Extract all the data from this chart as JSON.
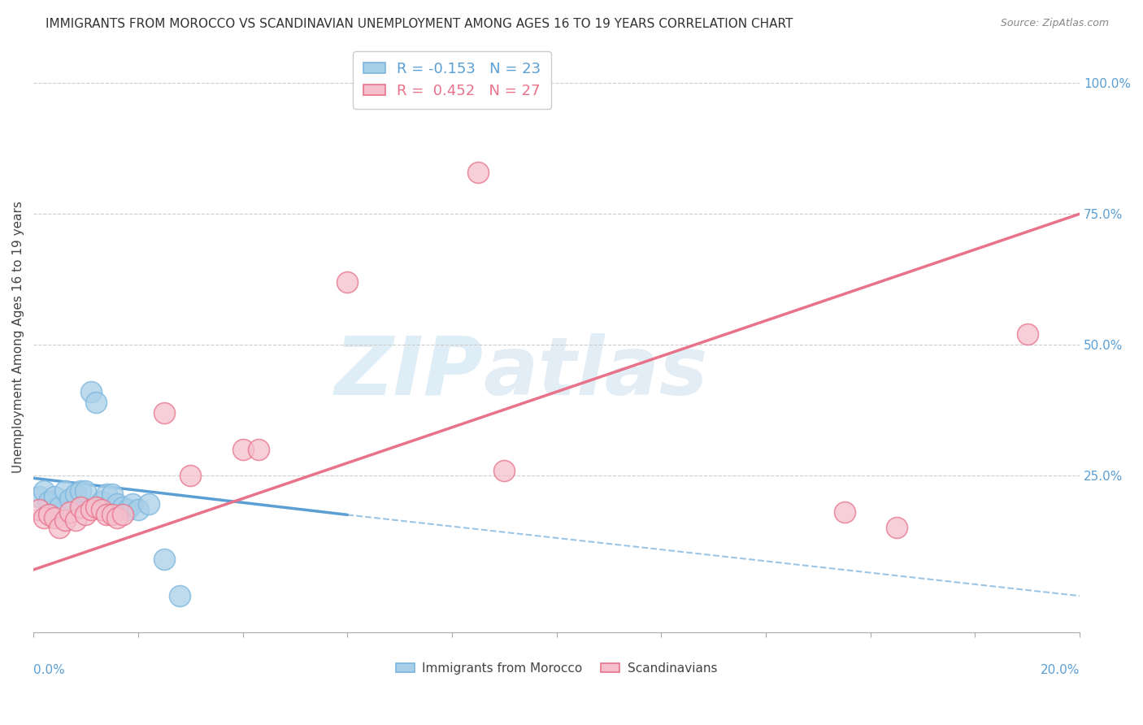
{
  "title": "IMMIGRANTS FROM MOROCCO VS SCANDINAVIAN UNEMPLOYMENT AMONG AGES 16 TO 19 YEARS CORRELATION CHART",
  "source": "Source: ZipAtlas.com",
  "ylabel": "Unemployment Among Ages 16 to 19 years",
  "legend_blue_r": "R = -0.153",
  "legend_blue_n": "N = 23",
  "legend_pink_r": "R =  0.452",
  "legend_pink_n": "N = 27",
  "blue_color": "#5b9fd4",
  "pink_color": "#e8728a",
  "blue_marker_face": "#a8cfe8",
  "pink_marker_face": "#f5bfcc",
  "blue_edge": "#7ab5de",
  "pink_edge": "#e8728a",
  "background_color": "#ffffff",
  "watermark_zip": "ZIP",
  "watermark_atlas": "atlas",
  "blue_scatter_x": [
    0.001,
    0.002,
    0.003,
    0.004,
    0.005,
    0.006,
    0.007,
    0.008,
    0.009,
    0.01,
    0.011,
    0.012,
    0.013,
    0.014,
    0.015,
    0.016,
    0.017,
    0.018,
    0.019,
    0.02,
    0.022,
    0.025,
    0.028
  ],
  "blue_scatter_y": [
    0.21,
    0.22,
    0.2,
    0.21,
    0.19,
    0.22,
    0.205,
    0.215,
    0.22,
    0.22,
    0.41,
    0.39,
    0.2,
    0.215,
    0.215,
    0.195,
    0.19,
    0.185,
    0.195,
    0.185,
    0.195,
    0.09,
    0.02
  ],
  "pink_scatter_x": [
    0.001,
    0.002,
    0.003,
    0.004,
    0.005,
    0.006,
    0.007,
    0.008,
    0.009,
    0.01,
    0.011,
    0.012,
    0.013,
    0.014,
    0.015,
    0.016,
    0.017,
    0.025,
    0.03,
    0.04,
    0.043,
    0.06,
    0.085,
    0.09,
    0.155,
    0.165,
    0.19
  ],
  "pink_scatter_y": [
    0.185,
    0.17,
    0.175,
    0.17,
    0.15,
    0.165,
    0.18,
    0.165,
    0.19,
    0.175,
    0.185,
    0.19,
    0.185,
    0.175,
    0.175,
    0.17,
    0.175,
    0.37,
    0.25,
    0.3,
    0.3,
    0.62,
    0.83,
    0.26,
    0.18,
    0.15,
    0.52
  ],
  "blue_trend_x": [
    0.0,
    0.06
  ],
  "blue_trend_y": [
    0.245,
    0.175
  ],
  "pink_trend_x": [
    0.0,
    0.2
  ],
  "pink_trend_y": [
    0.07,
    0.75
  ],
  "dashed_trend_x": [
    0.06,
    0.2
  ],
  "dashed_trend_y": [
    0.175,
    0.02
  ],
  "xmin": 0.0,
  "xmax": 0.2,
  "ymin": -0.05,
  "ymax": 1.08,
  "ytick_values": [
    0.25,
    0.5,
    0.75,
    1.0
  ],
  "ytick_labels": [
    "25.0%",
    "50.0%",
    "75.0%",
    "100.0%"
  ]
}
